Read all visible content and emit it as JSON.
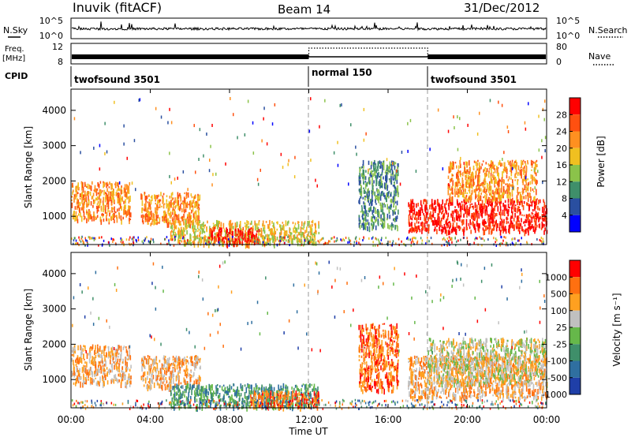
{
  "header": {
    "station": "Inuvik (fitACF)",
    "beam": "Beam 14",
    "date": "31/Dec/2012"
  },
  "top_panels": {
    "nsky_label": "N.Sky",
    "nsky_ticks": [
      "10^5",
      "10^0"
    ],
    "nsearch_label": "N.Search",
    "freq_label_1": "Freq.",
    "freq_label_2": "[MHz]",
    "freq_ticks": [
      "12",
      "8"
    ],
    "nave_ticks": [
      "80",
      "0"
    ],
    "nave_label": "Nave",
    "cpid_label": "CPID",
    "cpid_segments": [
      "twofsound 3501",
      "normal 150",
      "twofsound 3501"
    ]
  },
  "x_axis": {
    "ticks": [
      "00:00",
      "04:00",
      "08:00",
      "12:00",
      "16:00",
      "20:00",
      "00:00"
    ],
    "label": "Time UT"
  },
  "power_panel": {
    "ylabel": "Slant Range [km]",
    "yticks": [
      "4000",
      "3000",
      "2000",
      "1000"
    ],
    "colorbar_label": "Power [dB]",
    "colorbar_ticks": [
      "28",
      "24",
      "20",
      "16",
      "12",
      "8",
      "4"
    ],
    "colors": [
      "#0000ff",
      "#2a4fa0",
      "#3f8f6a",
      "#8bc34a",
      "#f0c020",
      "#ff9020",
      "#ff5010",
      "#ff0000"
    ]
  },
  "velocity_panel": {
    "ylabel": "Slant Range [km]",
    "yticks": [
      "4000",
      "3000",
      "2000",
      "1000"
    ],
    "colorbar_label": "Velocity [m s⁻¹]",
    "colorbar_ticks": [
      "1000",
      "500",
      "100",
      "25",
      "-25",
      "-100",
      "-500",
      "-1000"
    ],
    "colors": [
      "#1f3fa8",
      "#2f6fa0",
      "#3f8f6a",
      "#66b84a",
      "#c0c0c0",
      "#ffa020",
      "#ff7010",
      "#ff0000"
    ]
  },
  "chart_data": {
    "type": "heatmap",
    "x_unit": "hours UT",
    "xlim": [
      0,
      24
    ],
    "ylim": [
      200,
      4600
    ],
    "power_echo_regions": [
      {
        "t_start": 0.0,
        "t_end": 3.0,
        "r_min": 900,
        "r_max": 2000,
        "level": 5
      },
      {
        "t_start": 3.5,
        "t_end": 6.5,
        "r_min": 800,
        "r_max": 1700,
        "level": 5
      },
      {
        "t_start": 5.0,
        "t_end": 12.5,
        "r_min": 250,
        "r_max": 900,
        "level": 4
      },
      {
        "t_start": 7.0,
        "t_end": 9.5,
        "r_min": 250,
        "r_max": 700,
        "level": 7
      },
      {
        "t_start": 14.5,
        "t_end": 16.5,
        "r_min": 700,
        "r_max": 2600,
        "level": 2
      },
      {
        "t_start": 17.0,
        "t_end": 24.0,
        "r_min": 600,
        "r_max": 1500,
        "level": 7
      },
      {
        "t_start": 19.0,
        "t_end": 23.5,
        "r_min": 1500,
        "r_max": 2600,
        "level": 5
      }
    ],
    "velocity_echo_regions": [
      {
        "t_start": 0.0,
        "t_end": 3.0,
        "r_min": 900,
        "r_max": 2000,
        "level": 5
      },
      {
        "t_start": 3.5,
        "t_end": 6.5,
        "r_min": 800,
        "r_max": 1700,
        "level": 5
      },
      {
        "t_start": 5.0,
        "t_end": 12.5,
        "r_min": 250,
        "r_max": 900,
        "level": 2
      },
      {
        "t_start": 9.0,
        "t_end": 12.5,
        "r_min": 250,
        "r_max": 700,
        "level": 6
      },
      {
        "t_start": 14.5,
        "t_end": 16.5,
        "r_min": 700,
        "r_max": 2600,
        "level": 6
      },
      {
        "t_start": 17.0,
        "t_end": 24.0,
        "r_min": 500,
        "r_max": 1700,
        "level": 5
      },
      {
        "t_start": 18.0,
        "t_end": 24.0,
        "r_min": 900,
        "r_max": 2200,
        "level": 4
      }
    ],
    "program_changes_hours": [
      12,
      18
    ]
  }
}
